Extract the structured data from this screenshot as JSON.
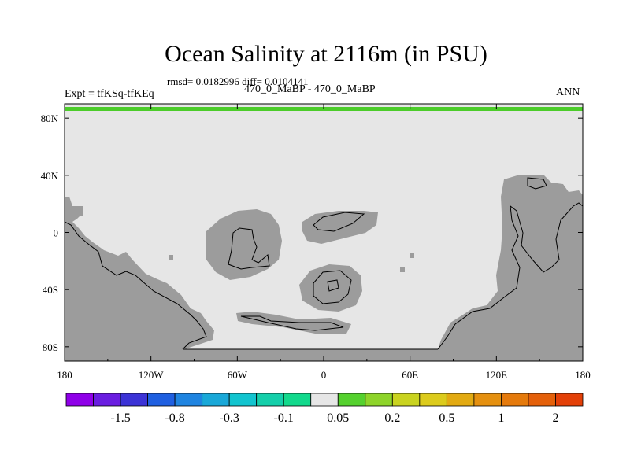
{
  "chart_data": {
    "type": "contour-map",
    "title": "Ocean Salinity at 2116m (in PSU)",
    "stats": "rmsd= 0.0182996 diff= 0.0104141",
    "left_label": "Expt = tfKSq-tfKEq",
    "center_label": "470_0_MaBP - 470_0_MaBP",
    "right_label": "ANN",
    "x_ticks": [
      "180",
      "120W",
      "60W",
      "0",
      "60E",
      "120E",
      "180"
    ],
    "x_tick_values": [
      -180,
      -120,
      -60,
      0,
      60,
      120,
      180
    ],
    "y_ticks": [
      "80N",
      "40N",
      "0",
      "40S",
      "80S"
    ],
    "y_tick_values": [
      80,
      40,
      0,
      -40,
      -80
    ],
    "xlim": [
      -180,
      180
    ],
    "ylim": [
      -90,
      90
    ],
    "field_note": "Difference field near zero over almost all ocean (light gray, 0.05 level); land masked in gray; thin green band (0.05–0.2) along northern edge",
    "colorbar": {
      "colors": [
        "#8f00e8",
        "#6a1de0",
        "#3c33d6",
        "#1f5fe0",
        "#1f84e0",
        "#19a8d8",
        "#12c4cf",
        "#14cfaa",
        "#12d98c",
        "#e6e6e6",
        "#55d12e",
        "#8ed42a",
        "#c9d320",
        "#dccb1c",
        "#e2aa12",
        "#e5900f",
        "#e57a0c",
        "#e4600a",
        "#e34008"
      ],
      "labels": [
        "-1.5",
        "-0.8",
        "-0.3",
        "-0.1",
        "0.05",
        "0.2",
        "0.5",
        "1",
        "2"
      ],
      "label_after_box": [
        1,
        3,
        5,
        7,
        9,
        11,
        13,
        15,
        17
      ]
    }
  }
}
